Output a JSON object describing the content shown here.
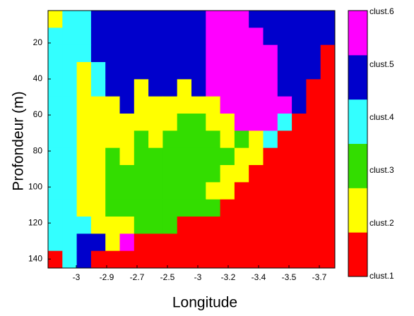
{
  "chart_data": {
    "type": "heatmap",
    "ylabel": "Profondeur (m)",
    "xlabel": "Longitude",
    "xtick_labels": [
      "-3",
      "-2.9",
      "-2.7",
      "-2.5",
      "-3",
      "-3.2",
      "-3.4",
      "-3.5",
      "-3.7"
    ],
    "ylim": [
      2,
      145
    ],
    "yticks": [
      20,
      40,
      60,
      80,
      100,
      120,
      140
    ],
    "series": [
      {
        "name": "clust.1",
        "color": "#ff0000"
      },
      {
        "name": "clust.2",
        "color": "#ffff00"
      },
      {
        "name": "clust.3",
        "color": "#33dd00"
      },
      {
        "name": "clust.4",
        "color": "#33ffff"
      },
      {
        "name": "clust.5",
        "color": "#0000cc"
      },
      {
        "name": "clust.6",
        "color": "#ff00ff"
      }
    ],
    "z": [
      [
        2,
        4,
        4,
        5,
        5,
        5,
        5,
        5,
        5,
        5,
        5,
        6,
        6,
        6,
        5,
        5,
        5,
        5,
        5,
        5
      ],
      [
        4,
        4,
        4,
        5,
        5,
        5,
        5,
        5,
        5,
        5,
        5,
        6,
        6,
        6,
        6,
        5,
        5,
        5,
        5,
        5
      ],
      [
        4,
        4,
        4,
        5,
        5,
        5,
        5,
        5,
        5,
        5,
        5,
        6,
        6,
        6,
        6,
        6,
        5,
        5,
        5,
        1
      ],
      [
        4,
        4,
        2,
        4,
        5,
        5,
        5,
        5,
        5,
        5,
        5,
        6,
        6,
        6,
        6,
        6,
        5,
        5,
        5,
        1
      ],
      [
        4,
        4,
        2,
        4,
        5,
        5,
        2,
        5,
        5,
        2,
        5,
        6,
        6,
        6,
        6,
        6,
        5,
        5,
        1,
        1
      ],
      [
        4,
        4,
        2,
        2,
        2,
        5,
        2,
        2,
        2,
        2,
        2,
        2,
        6,
        6,
        6,
        6,
        6,
        5,
        1,
        1
      ],
      [
        4,
        4,
        2,
        2,
        2,
        2,
        2,
        2,
        2,
        3,
        3,
        2,
        2,
        6,
        6,
        6,
        4,
        1,
        1,
        1
      ],
      [
        4,
        4,
        2,
        2,
        2,
        2,
        3,
        2,
        3,
        3,
        3,
        3,
        2,
        3,
        2,
        4,
        1,
        1,
        1,
        1
      ],
      [
        4,
        4,
        2,
        2,
        3,
        2,
        3,
        3,
        3,
        3,
        3,
        3,
        3,
        2,
        2,
        1,
        1,
        1,
        1,
        1
      ],
      [
        4,
        4,
        2,
        2,
        3,
        3,
        3,
        3,
        3,
        3,
        3,
        3,
        2,
        2,
        1,
        1,
        1,
        1,
        1,
        1
      ],
      [
        4,
        4,
        2,
        2,
        3,
        3,
        3,
        3,
        3,
        3,
        3,
        2,
        2,
        1,
        1,
        1,
        1,
        1,
        1,
        1
      ],
      [
        4,
        4,
        2,
        2,
        3,
        3,
        3,
        3,
        3,
        3,
        3,
        3,
        1,
        1,
        1,
        1,
        1,
        1,
        1,
        1
      ],
      [
        4,
        4,
        4,
        2,
        2,
        2,
        3,
        3,
        3,
        1,
        1,
        1,
        1,
        1,
        1,
        1,
        1,
        1,
        1,
        1
      ],
      [
        4,
        4,
        5,
        5,
        2,
        6,
        1,
        1,
        1,
        1,
        1,
        1,
        1,
        1,
        1,
        1,
        1,
        1,
        1,
        1
      ],
      [
        1,
        4,
        5,
        1,
        1,
        1,
        1,
        1,
        1,
        1,
        1,
        1,
        1,
        1,
        1,
        1,
        1,
        1,
        1,
        1
      ]
    ]
  }
}
